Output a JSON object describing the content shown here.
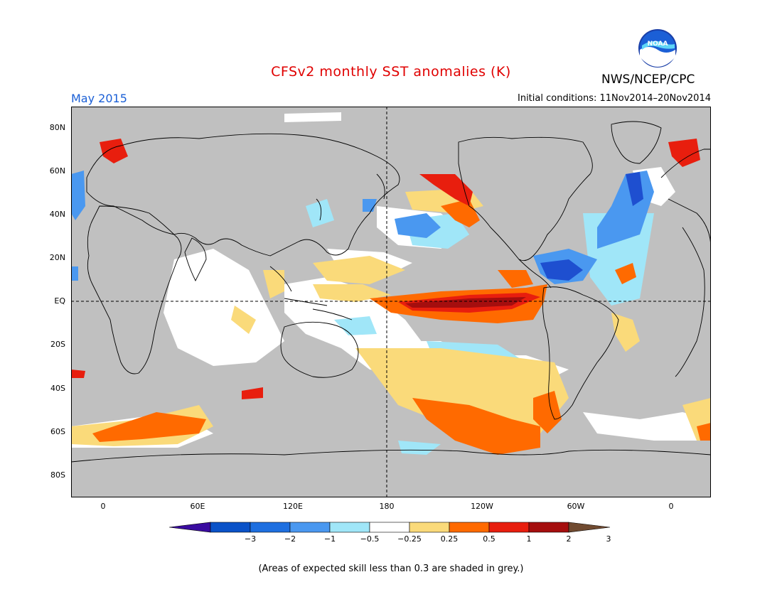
{
  "title": "CFSv2 monthly SST anomalies (K)",
  "valid_month": "May 2015",
  "initial_conditions": "Initial conditions: 11Nov2014–20Nov2014",
  "agency": "NWS/NCEP/CPC",
  "logo": {
    "icon": "noaa-logo-icon",
    "text": "NOAA"
  },
  "map": {
    "background_color": "#c0c0c0",
    "lat_labels": [
      "80N",
      "60N",
      "40N",
      "20N",
      "EQ",
      "20S",
      "40S",
      "60S",
      "80S"
    ],
    "lon_labels": [
      "0",
      "60E",
      "120E",
      "180",
      "120W",
      "60W",
      "0"
    ],
    "reference_lines": [
      "equator",
      "180 meridian"
    ]
  },
  "colorbar": {
    "labels": [
      "−3",
      "−2",
      "−1",
      "−0.5",
      "−0.25",
      "0.25",
      "0.5",
      "1",
      "2",
      "3"
    ],
    "colors": [
      "#3a0ca0",
      "#0a52c8",
      "#1e6fe0",
      "#4a98f0",
      "#a0e6f8",
      "#ffffff",
      "#fada7a",
      "#ff6a00",
      "#e81e0e",
      "#a50e0e",
      "#704a30"
    ]
  },
  "note": "(Areas of expected skill less than 0.3 are shaded in grey.)"
}
